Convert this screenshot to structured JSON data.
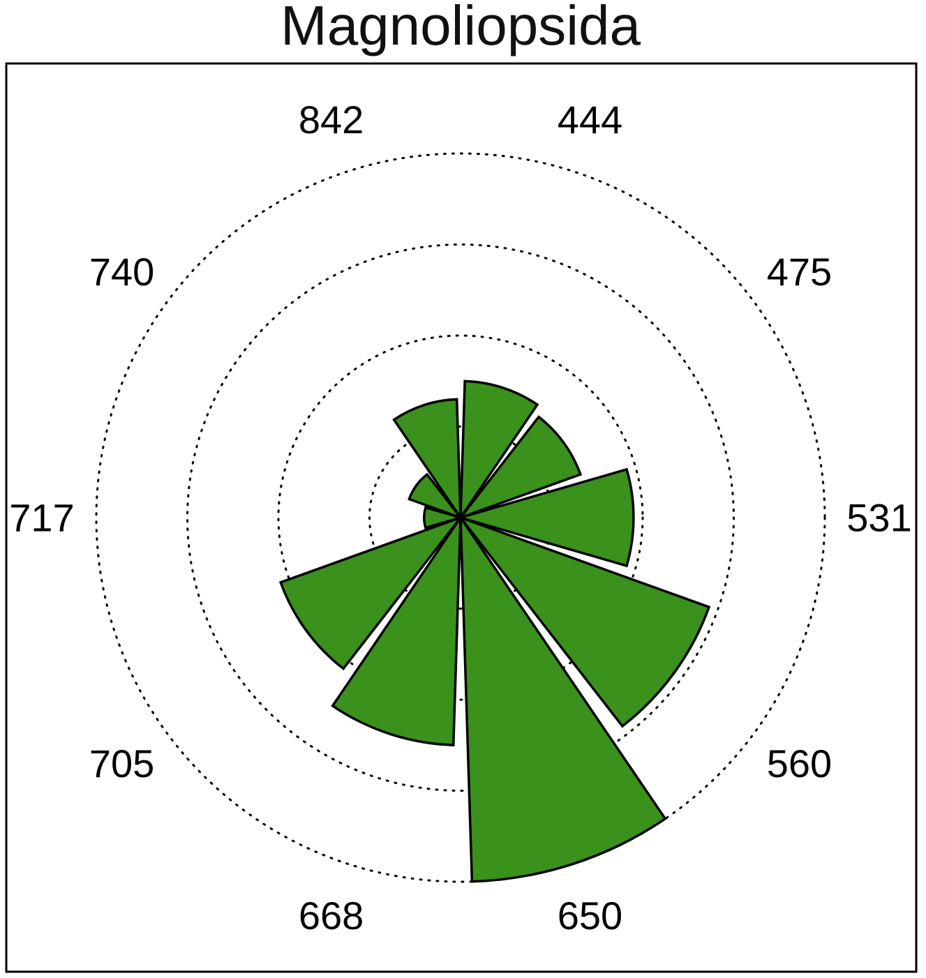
{
  "chart_data": {
    "type": "bar",
    "polar": true,
    "title": "Magnoliopsida",
    "categories": [
      "444",
      "475",
      "531",
      "560",
      "650",
      "668",
      "705",
      "717",
      "740",
      "842"
    ],
    "values": [
      15,
      14,
      19,
      29,
      40,
      25,
      21,
      4,
      6,
      13
    ],
    "rlim": [
      0,
      40
    ],
    "grid": "dotted radial rings",
    "bar_color": "#3a911c",
    "edge_color": "#000000",
    "direction": "clockwise from top"
  }
}
